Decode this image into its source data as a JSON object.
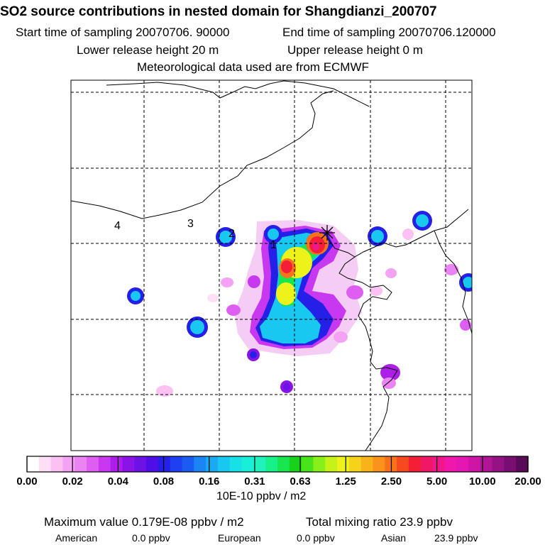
{
  "header": {
    "title": "SO2 source contributions in nested domain for Shangdianzi_200707",
    "start_label": "Start time of sampling 20070706. 90000",
    "end_label": "End time of sampling 20070706.120000",
    "lower_label": "Lower release height   20 m",
    "upper_label": "Upper release height    0 m",
    "met_label": "Meteorological data used are from ECMWF"
  },
  "map": {
    "region_labels": [
      "1",
      "2",
      "3",
      "4"
    ],
    "receptor_marker": "receptor-site"
  },
  "chart_data": {
    "type": "heatmap",
    "title": "SO2 source contributions in nested domain for Shangdianzi_200707",
    "colorbar": {
      "tick_labels": [
        "0.00",
        "0.02",
        "0.04",
        "0.08",
        "0.16",
        "0.31",
        "0.63",
        "1.25",
        "2.50",
        "5.00",
        "10.00",
        "20.00"
      ],
      "unit_label": "10E-10 ppbv / m2",
      "colors": [
        "#ffffff",
        "#fde0f6",
        "#fbc1f3",
        "#f4a2f3",
        "#eb84f3",
        "#df5ef2",
        "#c838f0",
        "#ad1ee8",
        "#8a14e6",
        "#6d11e5",
        "#4d0fe6",
        "#2420e8",
        "#1e40f0",
        "#1a5cf0",
        "#1a86f3",
        "#1aaaf2",
        "#18c8f0",
        "#17e0e6",
        "#19efd8",
        "#1ff2bc",
        "#18f08a",
        "#18e651",
        "#18d11a",
        "#47e41c",
        "#87ef19",
        "#c6f21a",
        "#edf21a",
        "#f5d31b",
        "#f8b31b",
        "#f9931b",
        "#f8721c",
        "#f7491e",
        "#f41e36",
        "#f01764",
        "#f0178a",
        "#f018ac",
        "#e517b4",
        "#cd16a8",
        "#b21496",
        "#951186",
        "#780e70",
        "#5a0b58"
      ]
    },
    "summary": {
      "max_label": "Maximum value  0.179E-08 ppbv / m2",
      "total_label": "Total mixing ratio      23.9 ppbv",
      "american_label": "American",
      "american_value": "0.0 ppbv",
      "european_label": "European",
      "european_value": "0.0 ppbv",
      "asian_label": "Asian",
      "asian_value": "23.9 ppbv"
    }
  }
}
